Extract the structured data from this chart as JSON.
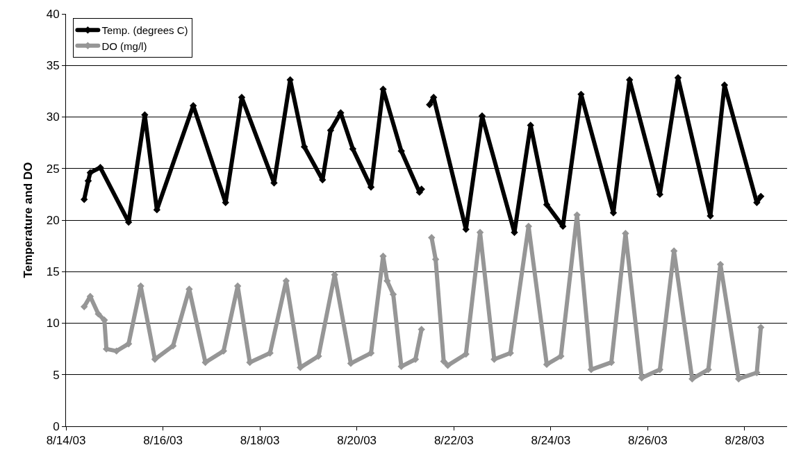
{
  "chart_data": {
    "type": "line",
    "ylabel": "Temperature and DO",
    "xlim": [
      "--08-14",
      "--08-28T21:00"
    ],
    "xticks": [
      {
        "value": "--08-14",
        "label": "8/14/03"
      },
      {
        "value": "--08-16",
        "label": "8/16/03"
      },
      {
        "value": "--08-18",
        "label": "8/18/03"
      },
      {
        "value": "--08-20",
        "label": "8/20/03"
      },
      {
        "value": "--08-22",
        "label": "8/22/03"
      },
      {
        "value": "--08-24",
        "label": "8/24/03"
      },
      {
        "value": "--08-26",
        "label": "8/26/03"
      },
      {
        "value": "--08-28",
        "label": "8/28/03"
      }
    ],
    "ylim": [
      0,
      40
    ],
    "yticks": [
      0,
      5,
      10,
      15,
      20,
      25,
      30,
      35,
      40
    ],
    "grid": "y",
    "legend": "top left",
    "marker": "diamond",
    "line_style": "solid",
    "series": [
      {
        "name": "Temp. (degrees C)",
        "color": "#000000",
        "x": [
          "--08-14T09:00",
          "--08-14T11:00",
          "--08-14T12:00",
          "--08-14T17:00",
          "--08-15T07:00",
          "--08-15T15:00",
          "--08-15T21:00",
          "--08-16T15:00",
          "--08-17T07:00",
          "--08-17T15:00",
          "--08-18T07:00",
          "--08-18T15:00",
          "--08-18T22:00",
          "--08-19T07:00",
          "--08-19T11:00",
          "--08-19T16:00",
          "--08-19T22:00",
          "--08-20T07:00",
          "--08-20T13:00",
          "--08-20T22:00",
          "--08-21T07:00",
          "--08-21T08:00",
          "--08-21T10:00",
          "--08-21T12:00",
          "--08-21T14:00",
          "--08-22T06:00",
          "--08-22T14:00",
          "--08-23T06:00",
          "--08-23T14:00",
          "--08-23T22:00",
          "--08-24T06:00",
          "--08-24T15:00",
          "--08-25T07:00",
          "--08-25T15:00",
          "--08-26T06:00",
          "--08-26T15:00",
          "--08-27T07:00",
          "--08-27T14:00",
          "--08-28T06:00",
          "--08-28T08:00"
        ],
        "values": [
          22.0,
          23.8,
          24.6,
          25.1,
          19.8,
          30.2,
          21.0,
          31.1,
          21.7,
          31.9,
          23.6,
          33.6,
          27.1,
          23.9,
          28.7,
          30.4,
          26.9,
          23.2,
          32.7,
          26.7,
          22.7,
          23.0,
          null,
          31.2,
          31.9,
          19.1,
          30.1,
          18.8,
          29.2,
          21.5,
          19.4,
          32.2,
          20.7,
          33.6,
          22.5,
          33.8,
          20.4,
          33.1,
          21.7,
          22.3
        ]
      },
      {
        "name": "DO (mg/l)",
        "color": "#969696",
        "x": [
          "--08-14T09:00",
          "--08-14T12:00",
          "--08-14T16:00",
          "--08-14T19:00",
          "--08-14T20:00",
          "--08-15T01:00",
          "--08-15T07:00",
          "--08-15T13:00",
          "--08-15T20:00",
          "--08-16T05:00",
          "--08-16T13:00",
          "--08-16T21:00",
          "--08-17T06:00",
          "--08-17T13:00",
          "--08-17T19:00",
          "--08-18T05:00",
          "--08-18T13:00",
          "--08-18T20:00",
          "--08-19T05:00",
          "--08-19T13:00",
          "--08-19T21:00",
          "--08-20T07:00",
          "--08-20T13:00",
          "--08-20T15:00",
          "--08-20T18:00",
          "--08-20T22:00",
          "--08-21T05:00",
          "--08-21T08:00",
          "--08-21T10:00",
          "--08-21T13:00",
          "--08-21T15:00",
          "--08-21T19:00",
          "--08-21T21:00",
          "--08-22T06:00",
          "--08-22T13:00",
          "--08-22T20:00",
          "--08-23T04:00",
          "--08-23T13:00",
          "--08-23T22:00",
          "--08-24T05:00",
          "--08-24T13:00",
          "--08-24T20:00",
          "--08-25T06:00",
          "--08-25T13:00",
          "--08-25T21:00",
          "--08-26T06:00",
          "--08-26T13:00",
          "--08-26T22:00",
          "--08-27T06:00",
          "--08-27T12:00",
          "--08-27T21:00",
          "--08-28T06:00",
          "--08-28T08:00"
        ],
        "values": [
          11.6,
          12.6,
          10.9,
          10.3,
          7.5,
          7.3,
          8.0,
          13.6,
          6.5,
          7.8,
          13.3,
          6.2,
          7.3,
          13.6,
          6.2,
          7.1,
          14.1,
          5.7,
          6.8,
          14.7,
          6.1,
          7.1,
          16.5,
          14.1,
          12.8,
          5.8,
          6.5,
          9.4,
          null,
          18.3,
          16.2,
          6.3,
          5.9,
          7.0,
          18.8,
          6.5,
          7.1,
          19.4,
          6.0,
          6.8,
          20.5,
          5.5,
          6.2,
          18.7,
          4.7,
          5.5,
          17.0,
          4.6,
          5.5,
          15.7,
          4.6,
          5.2,
          9.6
        ]
      }
    ]
  }
}
